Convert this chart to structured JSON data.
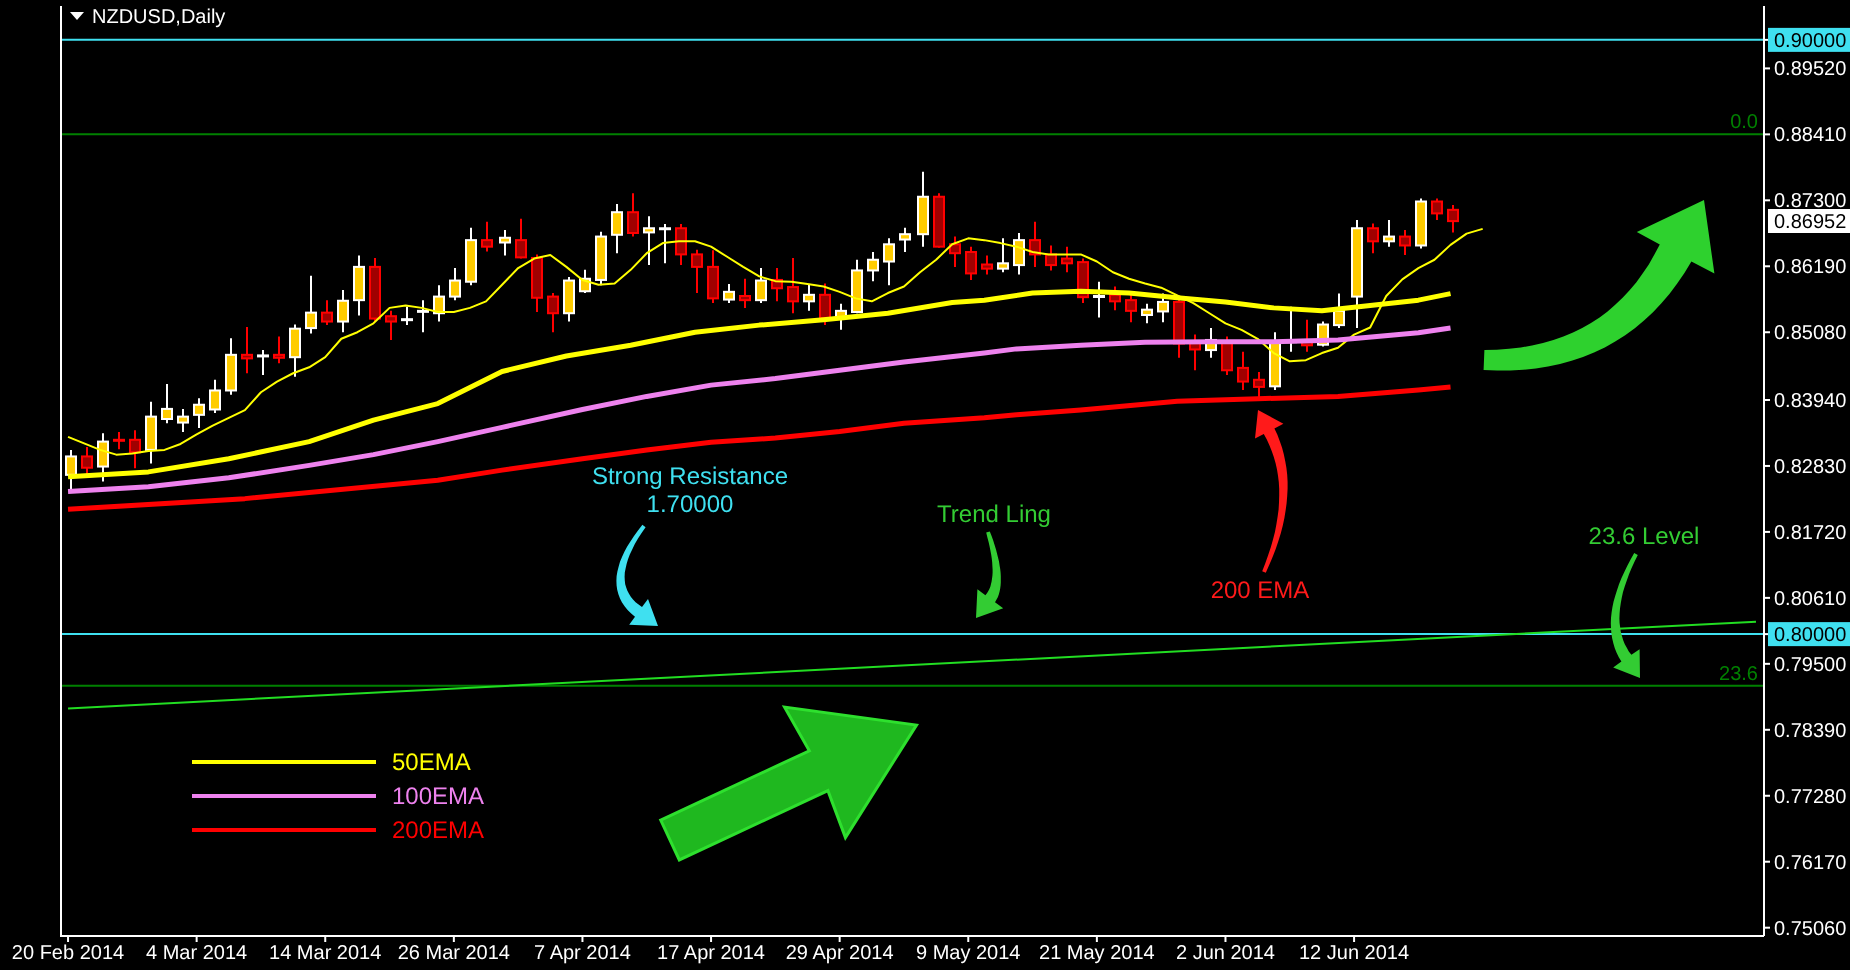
{
  "chart_data": {
    "type": "candlestick",
    "title": "NZDUSD,Daily",
    "categories": [
      "20 Feb 2014",
      null,
      null,
      null,
      null,
      null,
      null,
      null,
      "4 Mar 2014",
      null,
      null,
      null,
      null,
      null,
      null,
      null,
      "14 Mar 2014",
      null,
      null,
      null,
      null,
      null,
      null,
      null,
      "26 Mar 2014",
      null,
      null,
      null,
      null,
      null,
      null,
      null,
      "7 Apr 2014",
      null,
      null,
      null,
      null,
      null,
      null,
      null,
      "17 Apr 2014",
      null,
      null,
      null,
      null,
      null,
      null,
      null,
      "29 Apr 2014",
      null,
      null,
      null,
      null,
      null,
      null,
      null,
      "9 May 2014",
      null,
      null,
      null,
      null,
      null,
      null,
      null,
      "21 May 2014",
      null,
      null,
      null,
      null,
      null,
      null,
      null,
      "2 Jun 2014",
      null,
      null,
      null,
      null,
      null,
      null,
      null,
      "12 Jun 2014",
      null,
      null,
      null,
      null,
      null,
      null,
      null,
      null,
      null,
      null,
      null,
      null,
      null,
      null,
      null,
      null,
      null,
      null,
      null,
      null,
      null,
      null,
      null,
      null,
      null
    ],
    "ohlc": [
      [
        0.8268,
        0.831,
        0.8239,
        0.8299
      ],
      [
        0.8299,
        0.8315,
        0.8265,
        0.828
      ],
      [
        0.8282,
        0.8338,
        0.8257,
        0.8324
      ],
      [
        0.8327,
        0.834,
        0.8311,
        0.8326
      ],
      [
        0.8327,
        0.8343,
        0.8279,
        0.8306
      ],
      [
        0.831,
        0.8391,
        0.8287,
        0.8366
      ],
      [
        0.8362,
        0.8421,
        0.8355,
        0.8379
      ],
      [
        0.8356,
        0.8379,
        0.834,
        0.8366
      ],
      [
        0.8369,
        0.8397,
        0.8347,
        0.8386
      ],
      [
        0.8378,
        0.8428,
        0.8372,
        0.841
      ],
      [
        0.841,
        0.8498,
        0.8403,
        0.847
      ],
      [
        0.847,
        0.8517,
        0.8439,
        0.8464
      ],
      [
        0.8469,
        0.8478,
        0.8436,
        0.8469
      ],
      [
        0.847,
        0.8501,
        0.8456,
        0.8465
      ],
      [
        0.8466,
        0.8521,
        0.8433,
        0.8514
      ],
      [
        0.8515,
        0.8603,
        0.8506,
        0.8541
      ],
      [
        0.8541,
        0.8562,
        0.852,
        0.8526
      ],
      [
        0.8526,
        0.8579,
        0.8508,
        0.8561
      ],
      [
        0.8562,
        0.8637,
        0.8536,
        0.8618
      ],
      [
        0.8618,
        0.8633,
        0.8526,
        0.8531
      ],
      [
        0.8535,
        0.8544,
        0.8495,
        0.8526
      ],
      [
        0.853,
        0.8551,
        0.852,
        0.853
      ],
      [
        0.8544,
        0.8562,
        0.8508,
        0.8544
      ],
      [
        0.854,
        0.8587,
        0.8526,
        0.8568
      ],
      [
        0.8568,
        0.8616,
        0.8562,
        0.8595
      ],
      [
        0.8593,
        0.8684,
        0.8587,
        0.8663
      ],
      [
        0.8663,
        0.8694,
        0.8644,
        0.8652
      ],
      [
        0.8659,
        0.868,
        0.8637,
        0.8667
      ],
      [
        0.8663,
        0.8699,
        0.8632,
        0.8634
      ],
      [
        0.8633,
        0.8639,
        0.8542,
        0.8566
      ],
      [
        0.8568,
        0.8574,
        0.8508,
        0.854
      ],
      [
        0.854,
        0.8601,
        0.8526,
        0.8595
      ],
      [
        0.8577,
        0.8613,
        0.8574,
        0.8598
      ],
      [
        0.8596,
        0.8677,
        0.8587,
        0.8669
      ],
      [
        0.8672,
        0.8724,
        0.8641,
        0.871
      ],
      [
        0.871,
        0.8742,
        0.8669,
        0.8675
      ],
      [
        0.8676,
        0.8703,
        0.8621,
        0.8683
      ],
      [
        0.8683,
        0.869,
        0.8624,
        0.8683
      ],
      [
        0.8683,
        0.869,
        0.8621,
        0.8639
      ],
      [
        0.8639,
        0.8647,
        0.8574,
        0.8618
      ],
      [
        0.8618,
        0.8646,
        0.8557,
        0.8565
      ],
      [
        0.8563,
        0.8589,
        0.8557,
        0.8576
      ],
      [
        0.8569,
        0.8598,
        0.8549,
        0.8562
      ],
      [
        0.8562,
        0.8616,
        0.8557,
        0.8595
      ],
      [
        0.8596,
        0.8616,
        0.856,
        0.8582
      ],
      [
        0.8584,
        0.8633,
        0.854,
        0.856
      ],
      [
        0.856,
        0.8589,
        0.8544,
        0.8571
      ],
      [
        0.8571,
        0.859,
        0.852,
        0.8532
      ],
      [
        0.8533,
        0.8556,
        0.8512,
        0.8544
      ],
      [
        0.8542,
        0.863,
        0.854,
        0.8612
      ],
      [
        0.8612,
        0.8643,
        0.8594,
        0.863
      ],
      [
        0.8627,
        0.8666,
        0.8587,
        0.8656
      ],
      [
        0.8664,
        0.8684,
        0.8643,
        0.8673
      ],
      [
        0.8673,
        0.8778,
        0.8652,
        0.8736
      ],
      [
        0.8736,
        0.8742,
        0.865,
        0.8652
      ],
      [
        0.8656,
        0.8669,
        0.8618,
        0.8641
      ],
      [
        0.8643,
        0.8652,
        0.8596,
        0.8607
      ],
      [
        0.8622,
        0.8637,
        0.8605,
        0.8615
      ],
      [
        0.8615,
        0.8666,
        0.8609,
        0.8624
      ],
      [
        0.8621,
        0.8675,
        0.8605,
        0.8663
      ],
      [
        0.8663,
        0.8694,
        0.8618,
        0.8639
      ],
      [
        0.8639,
        0.8654,
        0.8612,
        0.8621
      ],
      [
        0.8632,
        0.8652,
        0.8609,
        0.8624
      ],
      [
        0.8626,
        0.8632,
        0.8557,
        0.8567
      ],
      [
        0.8569,
        0.8593,
        0.8533,
        0.8569
      ],
      [
        0.8571,
        0.8585,
        0.8545,
        0.856
      ],
      [
        0.8562,
        0.8573,
        0.8525,
        0.8544
      ],
      [
        0.8537,
        0.8556,
        0.8523,
        0.8546
      ],
      [
        0.8543,
        0.8573,
        0.8525,
        0.8559
      ],
      [
        0.8559,
        0.8568,
        0.8465,
        0.8489
      ],
      [
        0.8491,
        0.8504,
        0.8444,
        0.8479
      ],
      [
        0.8478,
        0.8515,
        0.8465,
        0.8495
      ],
      [
        0.849,
        0.8501,
        0.8436,
        0.8444
      ],
      [
        0.8448,
        0.8475,
        0.8411,
        0.8425
      ],
      [
        0.8428,
        0.8441,
        0.8396,
        0.8416
      ],
      [
        0.8417,
        0.8508,
        0.8411,
        0.8493
      ],
      [
        0.8493,
        0.8551,
        0.8475,
        0.8493
      ],
      [
        0.8495,
        0.8529,
        0.8475,
        0.8486
      ],
      [
        0.8487,
        0.8526,
        0.8484,
        0.8521
      ],
      [
        0.852,
        0.8573,
        0.8515,
        0.8544
      ],
      [
        0.8568,
        0.8697,
        0.8515,
        0.8683
      ],
      [
        0.8683,
        0.8691,
        0.8641,
        0.8661
      ],
      [
        0.8661,
        0.8697,
        0.8652,
        0.8669
      ],
      [
        0.8669,
        0.868,
        0.8638,
        0.8654
      ],
      [
        0.8654,
        0.8733,
        0.8649,
        0.8728
      ],
      [
        0.8728,
        0.8733,
        0.8697,
        0.8708
      ],
      [
        0.8714,
        0.8722,
        0.8676,
        0.8695
      ],
      null,
      null,
      null,
      null,
      null,
      null,
      null,
      null,
      null,
      null,
      null,
      null,
      null,
      null,
      null,
      null,
      null,
      null,
      null
    ],
    "colors": [
      "#ffcc00",
      "#a00000",
      "#ffcc00",
      "#a00000",
      "#a00000",
      "#ffcc00",
      "#ffcc00",
      "#ffcc00",
      "#ffcc00",
      "#ffcc00",
      "#ffcc00",
      "#a00000",
      "#ffffff",
      "#a00000",
      "#ffcc00",
      "#ffcc00",
      "#a00000",
      "#ffcc00",
      "#ffcc00",
      "#a00000",
      "#a00000",
      "#ffffff",
      "#ffffff",
      "#ffcc00",
      "#ffcc00",
      "#ffcc00",
      "#a00000",
      "#ffcc00",
      "#a00000",
      "#a00000",
      "#a00000",
      "#ffcc00",
      "#ffcc00",
      "#ffcc00",
      "#ffcc00",
      "#a00000",
      "#ffcc00",
      "#ffffff",
      "#a00000",
      "#a00000",
      "#a00000",
      "#ffcc00",
      "#a00000",
      "#ffcc00",
      "#a00000",
      "#a00000",
      "#ffcc00",
      "#a00000",
      "#ffcc00",
      "#ffcc00",
      "#ffcc00",
      "#ffcc00",
      "#ffcc00",
      "#ffcc00",
      "#a00000",
      "#a00000",
      "#a00000",
      "#a00000",
      "#ffcc00",
      "#ffcc00",
      "#a00000",
      "#a00000",
      "#a00000",
      "#a00000",
      "#ffffff",
      "#a00000",
      "#a00000",
      "#ffcc00",
      "#ffcc00",
      "#a00000",
      "#a00000",
      "#ffcc00",
      "#a00000",
      "#a00000",
      "#a00000",
      "#ffcc00",
      "#ffffff",
      "#a00000",
      "#ffcc00",
      "#ffcc00",
      "#ffcc00",
      "#a00000",
      "#ffcc00",
      "#a00000",
      "#ffcc00",
      "#a00000",
      "#a00000",
      null,
      null,
      null,
      null,
      null,
      null,
      null,
      null,
      null,
      null,
      null,
      null,
      null,
      null,
      null,
      null,
      null,
      null,
      null
    ],
    "series": [
      {
        "type": "line",
        "color": "#ffff00",
        "values": [
          0.8332,
          0.8321,
          0.831,
          0.8302,
          0.8304,
          0.8308,
          0.831,
          0.832,
          0.8336,
          0.8351,
          0.8364,
          0.8377,
          0.8407,
          0.8425,
          0.8439,
          0.8449,
          0.8466,
          0.8497,
          0.8508,
          0.8523,
          0.8549,
          0.8553,
          0.8549,
          0.8542,
          0.8542,
          0.8549,
          0.856,
          0.8588,
          0.8616,
          0.8632,
          0.8638,
          0.8618,
          0.8596,
          0.8588,
          0.859,
          0.8613,
          0.8641,
          0.8658,
          0.8661,
          0.8661,
          0.8652,
          0.8635,
          0.8618,
          0.8602,
          0.8594,
          0.8593,
          0.8589,
          0.8585,
          0.8576,
          0.8565,
          0.856,
          0.8574,
          0.8585,
          0.8609,
          0.863,
          0.8656,
          0.8666,
          0.8663,
          0.8658,
          0.8652,
          0.8643,
          0.8639,
          0.8639,
          0.8639,
          0.8627,
          0.8609,
          0.8598,
          0.859,
          0.8583,
          0.857,
          0.8557,
          0.854,
          0.8523,
          0.8512,
          0.8497,
          0.8473,
          0.8459,
          0.8461,
          0.8473,
          0.8482,
          0.8504,
          0.8516,
          0.8569,
          0.8597,
          0.8616,
          0.863,
          0.8655,
          0.8674,
          0.8682,
          null,
          null,
          null,
          null,
          null,
          null,
          null,
          null,
          null,
          null,
          null,
          null,
          null,
          null,
          null,
          null,
          null
        ]
      },
      {
        "type": "line",
        "name": "50EMA",
        "color": "#ffff00",
        "values": [
          0.8265,
          null,
          null,
          null,
          null,
          0.8273,
          null,
          null,
          null,
          null,
          0.8295,
          null,
          null,
          null,
          null,
          0.8324,
          null,
          null,
          null,
          0.836,
          null,
          null,
          null,
          0.8388,
          null,
          null,
          null,
          0.8442,
          null,
          null,
          null,
          0.8468,
          null,
          null,
          null,
          0.8486,
          null,
          null,
          null,
          0.8508,
          null,
          null,
          null,
          0.852,
          null,
          null,
          null,
          0.8529,
          null,
          null,
          null,
          0.854,
          null,
          null,
          null,
          0.8558,
          null,
          0.8562,
          null,
          null,
          0.8574,
          null,
          null,
          0.8577,
          null,
          null,
          0.8574,
          null,
          null,
          0.8566,
          null,
          null,
          0.8559,
          null,
          null,
          0.8549,
          null,
          null,
          0.8544,
          null,
          null,
          0.8553,
          null,
          null,
          0.8562,
          null,
          0.8573,
          null,
          null,
          null,
          null,
          null,
          null,
          null,
          null,
          null,
          null,
          null,
          null,
          null,
          null,
          null,
          null,
          null,
          null,
          null
        ]
      },
      {
        "type": "line",
        "name": "100EMA",
        "color": "#ee82ee",
        "values": [
          0.824,
          null,
          null,
          null,
          null,
          0.8248,
          null,
          null,
          null,
          null,
          0.8263,
          null,
          null,
          null,
          null,
          0.8284,
          null,
          null,
          null,
          0.8302,
          null,
          null,
          null,
          0.8324,
          null,
          null,
          null,
          0.8348,
          null,
          null,
          null,
          null,
          0.8378,
          null,
          null,
          null,
          0.84,
          null,
          null,
          null,
          0.8419,
          null,
          null,
          null,
          0.843,
          null,
          null,
          null,
          0.8444,
          null,
          null,
          null,
          0.8458,
          null,
          null,
          null,
          null,
          0.8473,
          null,
          0.848,
          null,
          null,
          null,
          0.8486,
          null,
          null,
          null,
          0.8491,
          null,
          null,
          null,
          0.8492,
          null,
          null,
          null,
          0.8492,
          null,
          null,
          null,
          0.8495,
          null,
          null,
          null,
          null,
          0.8507,
          null,
          0.8515,
          null,
          null,
          null,
          null,
          null,
          null,
          null,
          null,
          null,
          null,
          null,
          null,
          null,
          null,
          null,
          null,
          null,
          null,
          null
        ]
      },
      {
        "type": "line",
        "name": "200EMA",
        "color": "#ff0000",
        "values": [
          0.821,
          null,
          null,
          null,
          null,
          null,
          null,
          null,
          null,
          null,
          null,
          0.8228,
          null,
          null,
          null,
          null,
          null,
          null,
          null,
          null,
          null,
          null,
          null,
          0.8259,
          null,
          null,
          null,
          0.8276,
          null,
          null,
          null,
          null,
          0.8295,
          null,
          null,
          null,
          0.831,
          null,
          null,
          null,
          0.8323,
          null,
          null,
          null,
          0.833,
          null,
          null,
          null,
          0.8341,
          null,
          null,
          null,
          0.8355,
          null,
          null,
          null,
          null,
          0.8364,
          null,
          0.8369,
          null,
          null,
          null,
          0.8377,
          null,
          null,
          null,
          null,
          null,
          0.8392,
          null,
          null,
          null,
          null,
          0.8396,
          null,
          null,
          null,
          null,
          0.84,
          null,
          null,
          null,
          null,
          0.8411,
          null,
          0.8416,
          null,
          null,
          null,
          null,
          null,
          null,
          null,
          null,
          null,
          null,
          null,
          null,
          null,
          null,
          null,
          null,
          null,
          null,
          null
        ]
      },
      {
        "type": "line",
        "color": "#22dd22",
        "values": [
          0.7875,
          null,
          null,
          null,
          null,
          null,
          null,
          null,
          null,
          null,
          null,
          null,
          null,
          null,
          null,
          null,
          null,
          null,
          null,
          null,
          null,
          null,
          null,
          null,
          null,
          null,
          null,
          null,
          null,
          null,
          null,
          null,
          null,
          null,
          null,
          null,
          null,
          null,
          null,
          null,
          null,
          null,
          null,
          null,
          null,
          null,
          null,
          null,
          null,
          null,
          null,
          null,
          null,
          null,
          null,
          null,
          null,
          null,
          null,
          null,
          null,
          null,
          null,
          null,
          null,
          null,
          null,
          null,
          null,
          null,
          null,
          null,
          null,
          null,
          null,
          null,
          null,
          null,
          null,
          null,
          null,
          null,
          null,
          null,
          null,
          null,
          null,
          null,
          null,
          null,
          null,
          null,
          null,
          null,
          null,
          null,
          null,
          null,
          null,
          null,
          null,
          null,
          null,
          null,
          null,
          0.8021
        ]
      }
    ],
    "ylim": [
      0.7492,
      0.9057
    ],
    "yticks": [
      {
        "value": 0.9,
        "label": "0.90000"
      },
      {
        "value": 0.8952,
        "label": "0.89520"
      },
      {
        "value": 0.8841,
        "label": "0.88410"
      },
      {
        "value": 0.873,
        "label": "0.87300"
      },
      {
        "value": 0.8619,
        "label": "0.86190"
      },
      {
        "value": 0.8508,
        "label": "0.85080"
      },
      {
        "value": 0.8394,
        "label": "0.83940"
      },
      {
        "value": 0.8283,
        "label": "0.82830"
      },
      {
        "value": 0.8172,
        "label": "0.81720"
      },
      {
        "value": 0.8061,
        "label": "0.80610"
      },
      {
        "value": 0.8,
        "label": "0.80000"
      },
      {
        "value": 0.795,
        "label": "0.79500"
      },
      {
        "value": 0.7839,
        "label": "0.78390"
      },
      {
        "value": 0.7728,
        "label": "0.77280"
      },
      {
        "value": 0.7617,
        "label": "0.76170"
      },
      {
        "value": 0.7506,
        "label": "0.75060"
      }
    ],
    "ref_lines": [
      {
        "axis": "y",
        "value": 0.9,
        "color": "#3fe0f0"
      },
      {
        "axis": "y",
        "value": 0.8,
        "color": "#3fe0f0"
      },
      {
        "axis": "y",
        "value": 0.8841,
        "color": "#008000"
      },
      {
        "axis": "y",
        "value": 0.7913,
        "color": "#008000"
      }
    ],
    "annotations": [
      "Strong Resistance\n1.70000",
      "Trend Ling",
      "200 EMA",
      "23.6 Level",
      "0.0",
      "23.6",
      "0.86952"
    ],
    "legend": "bottom left"
  }
}
